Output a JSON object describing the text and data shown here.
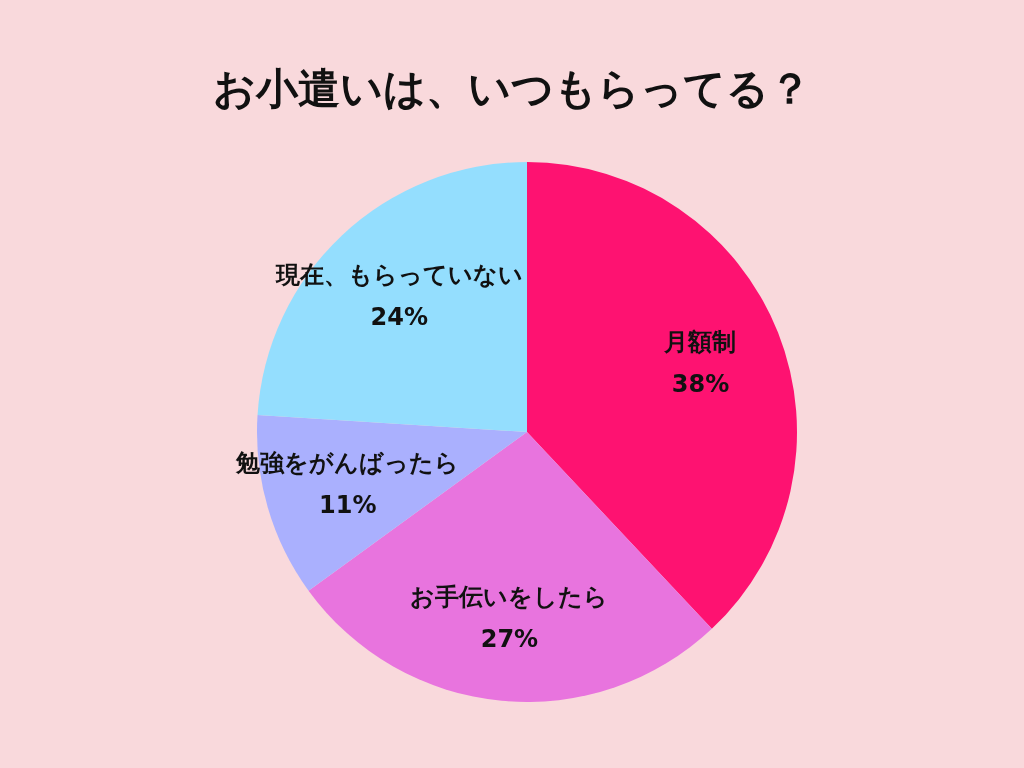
{
  "chart_data": {
    "type": "pie",
    "title": "お小遣いは、いつもらってる？",
    "categories": [
      "月額制",
      "お手伝いをしたら",
      "勉強をがんばったら",
      "現在、もらっていない"
    ],
    "values": [
      38,
      27,
      11,
      24
    ],
    "colors": [
      "#fe1271",
      "#e874de",
      "#aab0fe",
      "#94defe"
    ],
    "value_labels": [
      "38%",
      "27%",
      "11%",
      "24%"
    ],
    "legend": false
  }
}
